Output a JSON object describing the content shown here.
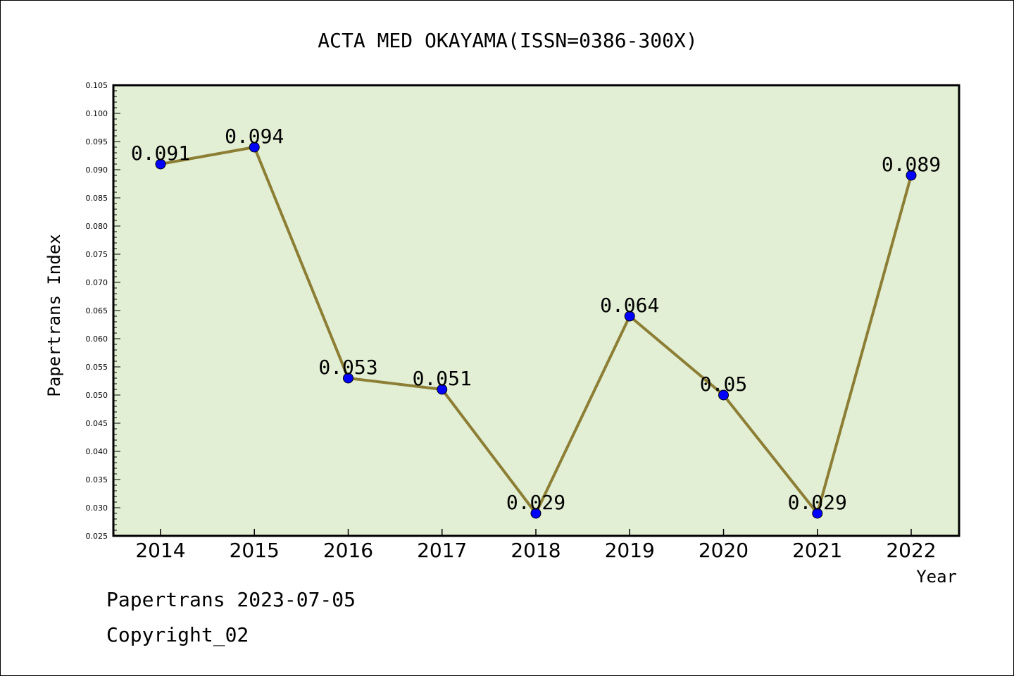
{
  "chart_data": {
    "type": "line",
    "title": "ACTA MED OKAYAMA(ISSN=0386-300X)",
    "xlabel": "Year",
    "ylabel": "Papertrans Index",
    "categories": [
      "2014",
      "2015",
      "2016",
      "2017",
      "2018",
      "2019",
      "2020",
      "2021",
      "2022"
    ],
    "series": [
      {
        "values": [
          0.091,
          0.094,
          0.053,
          0.051,
          0.029,
          0.064,
          0.05,
          0.029,
          0.089
        ],
        "labels": [
          "0.091",
          "0.094",
          "0.053",
          "0.051",
          "0.029",
          "0.064",
          "0.05",
          "0.029",
          "0.089"
        ]
      }
    ],
    "ylim": [
      0.025,
      0.105
    ],
    "yticks": [
      "0.025",
      "0.030",
      "0.035",
      "0.040",
      "0.045",
      "0.050",
      "0.055",
      "0.060",
      "0.065",
      "0.070",
      "0.075",
      "0.080",
      "0.085",
      "0.090",
      "0.095",
      "0.100",
      "0.105"
    ],
    "grid": false,
    "colors": {
      "plot_background": "#e2efd4",
      "line": "#8c7e34",
      "marker": "#0000ff"
    }
  },
  "footer": {
    "line1": "Papertrans 2023-07-05",
    "line2": "Copyright_02"
  }
}
